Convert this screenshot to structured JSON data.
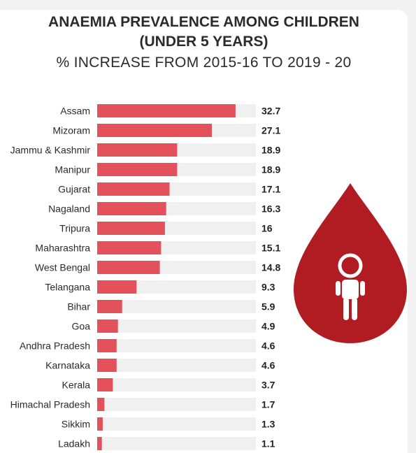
{
  "header": {
    "title_line1": "ANAEMIA PREVALENCE AMONG CHILDREN",
    "title_line2": "(UNDER 5 YEARS)",
    "subtitle": "% INCREASE FROM 2015-16 TO 2019 - 20"
  },
  "colors": {
    "bar": "#e3525a",
    "track": "#f0f0f0",
    "drop": "#b01c22",
    "icon": "#ffffff"
  },
  "icons": {
    "drop": "blood-drop-child-icon"
  },
  "chart_data": {
    "type": "bar",
    "orientation": "horizontal",
    "title": "ANAEMIA PREVALENCE AMONG CHILDREN (UNDER 5 YEARS)",
    "subtitle": "% INCREASE FROM 2015-16 TO 2019 - 20",
    "xlabel": "",
    "ylabel": "",
    "xlim": [
      0,
      37.5
    ],
    "grid": false,
    "categories": [
      "Assam",
      "Mizoram",
      "Jammu & Kashmir",
      "Manipur",
      "Gujarat",
      "Nagaland",
      "Tripura",
      "Maharashtra",
      "West Bengal",
      "Telangana",
      "Bihar",
      "Goa",
      "Andhra Pradesh",
      "Karnataka",
      "Kerala",
      "Himachal Pradesh",
      "Sikkim",
      "Ladakh"
    ],
    "values": [
      32.7,
      27.1,
      18.9,
      18.9,
      17.1,
      16.3,
      16,
      15.1,
      14.8,
      9.3,
      5.9,
      4.9,
      4.6,
      4.6,
      3.7,
      1.7,
      1.3,
      1.1
    ],
    "value_labels": [
      "32.7",
      "27.1",
      "18.9",
      "18.9",
      "17.1",
      "16.3",
      "16",
      "15.1",
      "14.8",
      "9.3",
      "5.9",
      "4.9",
      "4.6",
      "4.6",
      "3.7",
      "1.7",
      "1.3",
      "1.1"
    ]
  }
}
